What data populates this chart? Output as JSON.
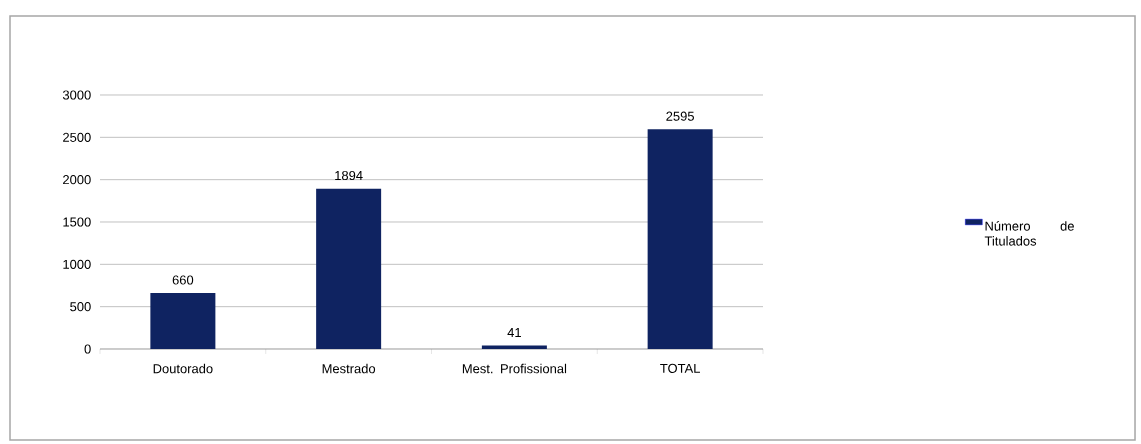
{
  "chart_data": {
    "type": "bar",
    "categories": [
      "Doutorado",
      "Mestrado",
      "Mest. Profissional",
      "TOTAL"
    ],
    "series": [
      {
        "name": "Número de Titulados",
        "color": "#0f2361",
        "values": [
          660,
          1894,
          41,
          2595
        ]
      }
    ],
    "ylim": [
      0,
      3000
    ],
    "yticks": [
      0,
      500,
      1000,
      1500,
      2000,
      2500,
      3000
    ],
    "grid": "y",
    "legend": "right",
    "data_labels": true
  }
}
